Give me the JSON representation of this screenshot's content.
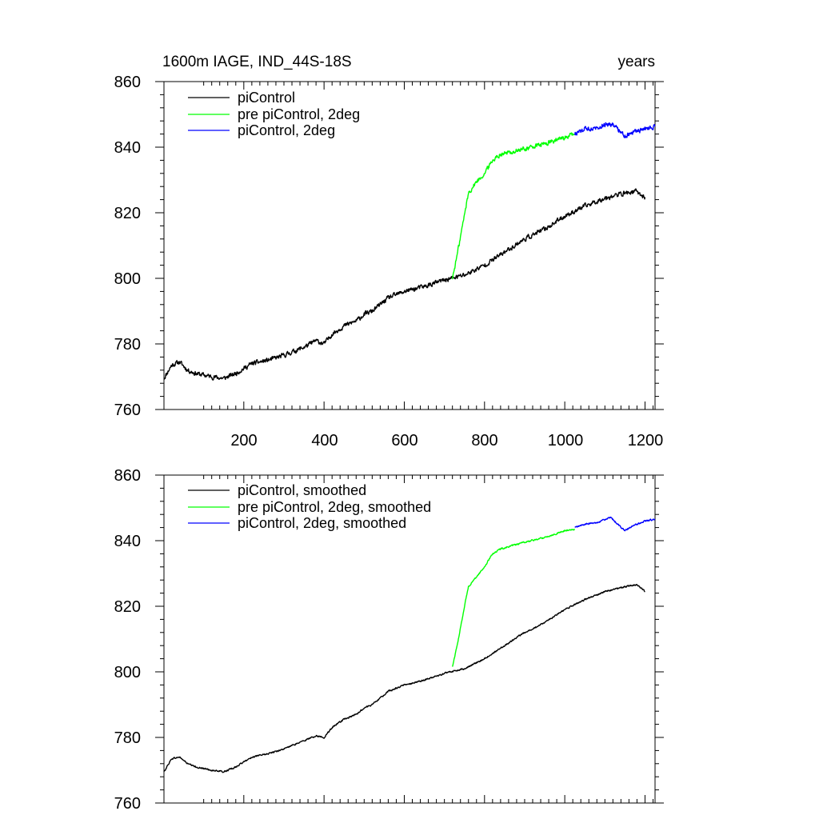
{
  "chart_data": [
    {
      "type": "line",
      "title": "1600m IAGE, IND_44S-18S",
      "right_title": "years",
      "xlim": [
        1,
        1225
      ],
      "ylim": [
        760,
        860
      ],
      "x_ticks": [
        200,
        400,
        600,
        800,
        1000,
        1200
      ],
      "x_tick_labels": [
        "200",
        "400",
        "600",
        "800",
        "1000",
        "1200"
      ],
      "y_ticks": [
        760,
        780,
        800,
        820,
        840,
        860
      ],
      "y_tick_labels": [
        "760",
        "780",
        "800",
        "820",
        "840",
        "860"
      ],
      "legend_position": "top-left",
      "series": [
        {
          "name": "piControl",
          "color": "#000000",
          "noise": 1.1,
          "anchors": [
            [
              1,
              769.5
            ],
            [
              20,
              773.5
            ],
            [
              40,
              774.5
            ],
            [
              60,
              772
            ],
            [
              80,
              771
            ],
            [
              100,
              770.5
            ],
            [
              120,
              770
            ],
            [
              150,
              769.5
            ],
            [
              180,
              771
            ],
            [
              200,
              772.5
            ],
            [
              220,
              774
            ],
            [
              260,
              775
            ],
            [
              300,
              776.5
            ],
            [
              350,
              779
            ],
            [
              380,
              781
            ],
            [
              400,
              780
            ],
            [
              420,
              783
            ],
            [
              450,
              785.5
            ],
            [
              480,
              787
            ],
            [
              500,
              789
            ],
            [
              520,
              790
            ],
            [
              540,
              792
            ],
            [
              560,
              794
            ],
            [
              600,
              796
            ],
            [
              650,
              797.5
            ],
            [
              700,
              799.5
            ],
            [
              750,
              801
            ],
            [
              800,
              804
            ],
            [
              850,
              808
            ],
            [
              900,
              812
            ],
            [
              950,
              815
            ],
            [
              1000,
              819
            ],
            [
              1050,
              822
            ],
            [
              1100,
              824.5
            ],
            [
              1150,
              826
            ],
            [
              1180,
              826.5
            ],
            [
              1200,
              824.5
            ]
          ]
        },
        {
          "name": "pre piControl, 2deg",
          "color": "#00ff00",
          "noise": 1.1,
          "anchors": [
            [
              720,
              800
            ],
            [
              730,
              806
            ],
            [
              745,
              816
            ],
            [
              760,
              826
            ],
            [
              780,
              829.5
            ],
            [
              800,
              832
            ],
            [
              820,
              836
            ],
            [
              840,
              838
            ],
            [
              870,
              838.5
            ],
            [
              900,
              839.5
            ],
            [
              950,
              841
            ],
            [
              1000,
              843
            ],
            [
              1025,
              844
            ]
          ]
        },
        {
          "name": "piControl, 2deg",
          "color": "#0000ff",
          "noise": 1.1,
          "anchors": [
            [
              1025,
              844
            ],
            [
              1050,
              845.5
            ],
            [
              1080,
              846
            ],
            [
              1100,
              847
            ],
            [
              1120,
              847
            ],
            [
              1150,
              843.5
            ],
            [
              1170,
              844.5
            ],
            [
              1200,
              845.5
            ],
            [
              1225,
              846.5
            ]
          ]
        }
      ]
    },
    {
      "type": "line",
      "xlim": [
        1,
        1225
      ],
      "ylim": [
        760,
        860
      ],
      "x_ticks": [
        200,
        400,
        600,
        800,
        1000,
        1200
      ],
      "y_ticks": [
        760,
        780,
        800,
        820,
        840,
        860
      ],
      "y_tick_labels": [
        "760",
        "780",
        "800",
        "820",
        "840",
        "860"
      ],
      "legend_position": "top-left",
      "series": [
        {
          "name": "piControl, smoothed",
          "color": "#000000",
          "noise": 0.35,
          "anchors": [
            [
              1,
              769.5
            ],
            [
              20,
              773.5
            ],
            [
              40,
              774
            ],
            [
              60,
              772
            ],
            [
              80,
              771
            ],
            [
              100,
              770.5
            ],
            [
              120,
              770
            ],
            [
              150,
              769.5
            ],
            [
              180,
              771
            ],
            [
              200,
              772.5
            ],
            [
              220,
              774
            ],
            [
              260,
              775
            ],
            [
              300,
              776.5
            ],
            [
              350,
              779
            ],
            [
              380,
              780.5
            ],
            [
              400,
              780
            ],
            [
              420,
              783
            ],
            [
              450,
              785.5
            ],
            [
              480,
              787
            ],
            [
              500,
              789
            ],
            [
              520,
              790
            ],
            [
              540,
              792
            ],
            [
              560,
              794
            ],
            [
              600,
              796
            ],
            [
              650,
              797.5
            ],
            [
              700,
              799.5
            ],
            [
              750,
              801
            ],
            [
              800,
              804
            ],
            [
              850,
              808
            ],
            [
              900,
              812
            ],
            [
              950,
              815
            ],
            [
              1000,
              819
            ],
            [
              1050,
              822
            ],
            [
              1100,
              824.5
            ],
            [
              1150,
              826
            ],
            [
              1180,
              826.5
            ],
            [
              1200,
              824.5
            ]
          ]
        },
        {
          "name": "pre piControl, 2deg, smoothed",
          "color": "#00ff00",
          "noise": 0.35,
          "anchors": [
            [
              720,
              801.5
            ],
            [
              735,
              810
            ],
            [
              750,
              820
            ],
            [
              760,
              826
            ],
            [
              780,
              829
            ],
            [
              800,
              832
            ],
            [
              820,
              836
            ],
            [
              840,
              837.5
            ],
            [
              870,
              838.5
            ],
            [
              900,
              839.5
            ],
            [
              950,
              841
            ],
            [
              1000,
              843
            ],
            [
              1025,
              843.5
            ]
          ]
        },
        {
          "name": "piControl, 2deg, smoothed",
          "color": "#0000ff",
          "noise": 0.35,
          "anchors": [
            [
              1025,
              844
            ],
            [
              1050,
              845
            ],
            [
              1080,
              845.5
            ],
            [
              1100,
              846.5
            ],
            [
              1115,
              847
            ],
            [
              1150,
              843
            ],
            [
              1170,
              844.5
            ],
            [
              1200,
              846
            ],
            [
              1225,
              846.5
            ]
          ]
        }
      ]
    }
  ]
}
